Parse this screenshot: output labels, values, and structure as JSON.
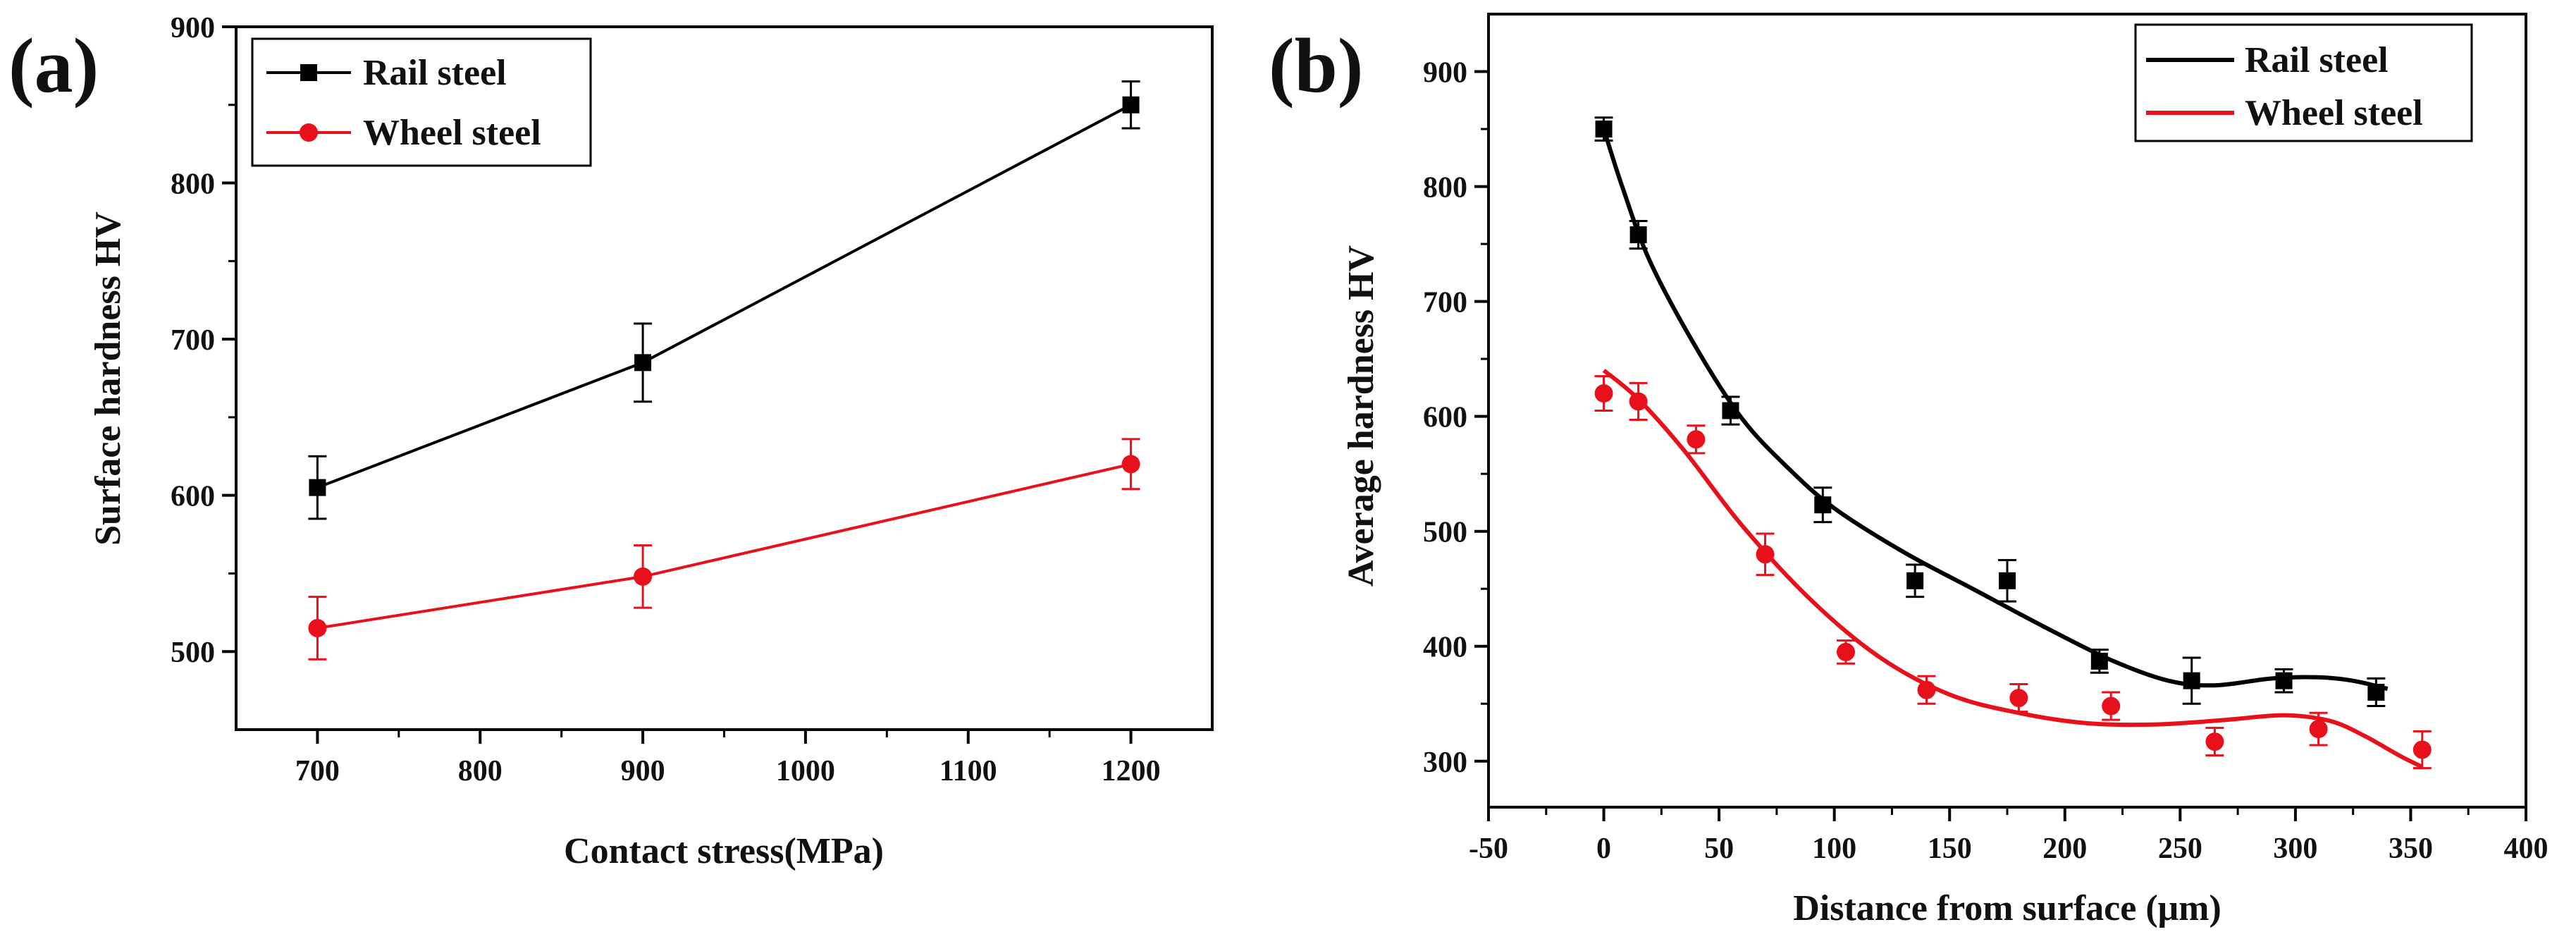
{
  "chart_data": [
    {
      "panel_label": "(a)",
      "type": "line",
      "xlabel": "Contact stress(MPa)",
      "ylabel": "Surface hardness HV",
      "xlim": [
        650,
        1250
      ],
      "ylim": [
        450,
        900
      ],
      "xticks": [
        700,
        800,
        900,
        1000,
        1100,
        1200
      ],
      "yticks": [
        500,
        600,
        700,
        800,
        900
      ],
      "legend_position": "top-left",
      "series": [
        {
          "name": "Rail steel",
          "color": "#000000",
          "marker": "square",
          "x": [
            700,
            900,
            1200
          ],
          "y": [
            605,
            685,
            850
          ],
          "err": [
            20,
            25,
            15
          ]
        },
        {
          "name": "Wheel steel",
          "color": "#e8101a",
          "marker": "circle",
          "x": [
            700,
            900,
            1200
          ],
          "y": [
            515,
            548,
            620
          ],
          "err": [
            20,
            20,
            16
          ]
        }
      ]
    },
    {
      "panel_label": "(b)",
      "type": "scatter",
      "xlabel": "Distance from surface (μm)",
      "ylabel": "Average hardness HV",
      "xlim": [
        -50,
        400
      ],
      "ylim": [
        260,
        950
      ],
      "xticks": [
        -50,
        0,
        50,
        100,
        150,
        200,
        250,
        300,
        350,
        400
      ],
      "yticks": [
        300,
        400,
        500,
        600,
        700,
        800,
        900
      ],
      "legend_position": "top-right",
      "series": [
        {
          "name": "Rail steel",
          "color": "#000000",
          "marker": "square",
          "x": [
            0,
            15,
            55,
            95,
            135,
            175,
            215,
            255,
            295,
            335
          ],
          "y": [
            850,
            758,
            605,
            523,
            457,
            457,
            387,
            370,
            370,
            360
          ],
          "err": [
            10,
            12,
            12,
            15,
            14,
            18,
            10,
            20,
            10,
            12
          ],
          "fit": [
            [
              0,
              850
            ],
            [
              8,
              800
            ],
            [
              20,
              735
            ],
            [
              40,
              660
            ],
            [
              60,
              598
            ],
            [
              80,
              555
            ],
            [
              100,
              520
            ],
            [
              130,
              482
            ],
            [
              160,
              450
            ],
            [
              190,
              418
            ],
            [
              220,
              388
            ],
            [
              245,
              370
            ],
            [
              265,
              366
            ],
            [
              290,
              372
            ],
            [
              310,
              373
            ],
            [
              325,
              370
            ],
            [
              340,
              363
            ]
          ]
        },
        {
          "name": "Wheel steel",
          "color": "#e8101a",
          "marker": "circle",
          "x": [
            0,
            15,
            40,
            70,
            105,
            140,
            180,
            220,
            265,
            310,
            355
          ],
          "y": [
            620,
            613,
            580,
            480,
            395,
            362,
            355,
            348,
            317,
            328,
            310
          ],
          "err": [
            15,
            16,
            12,
            18,
            10,
            12,
            12,
            12,
            12,
            14,
            16
          ],
          "fit": [
            [
              0,
              640
            ],
            [
              15,
              615
            ],
            [
              35,
              570
            ],
            [
              60,
              505
            ],
            [
              90,
              440
            ],
            [
              120,
              390
            ],
            [
              150,
              358
            ],
            [
              180,
              342
            ],
            [
              210,
              333
            ],
            [
              240,
              332
            ],
            [
              270,
              336
            ],
            [
              295,
              340
            ],
            [
              315,
              335
            ],
            [
              330,
              322
            ],
            [
              345,
              305
            ],
            [
              355,
              295
            ]
          ]
        }
      ]
    }
  ]
}
